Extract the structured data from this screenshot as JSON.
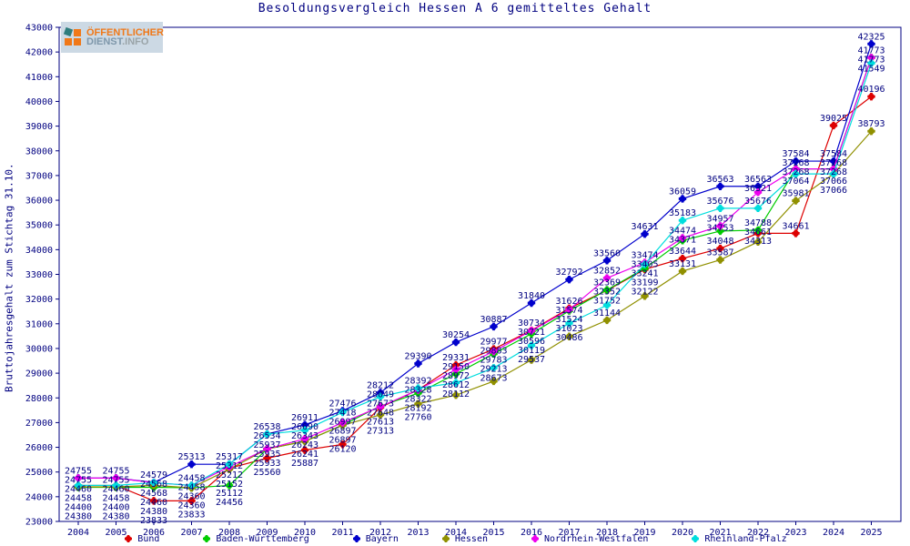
{
  "title": "Besoldungsvergleich Hessen A 6 gemitteltes Gehalt",
  "logo": {
    "line1": "ÖFFENTLICHER",
    "line2_a": "DIENST",
    "line2_b": ".INFO"
  },
  "colors": {
    "axis": "#000080",
    "text": "#000080",
    "background": "#ffffff",
    "logo_orange": "#f07818",
    "logo_gray_blue": "#7e97aa"
  },
  "chart_data": {
    "type": "line",
    "title": "Besoldungsvergleich Hessen A 6 gemitteltes Gehalt",
    "xlabel": "",
    "ylabel": "Bruttojahresgehalt zum Stichtag 31.10.",
    "x": [
      2004,
      2005,
      2006,
      2007,
      2008,
      2009,
      2010,
      2011,
      2012,
      2013,
      2014,
      2015,
      2016,
      2017,
      2018,
      2019,
      2020,
      2021,
      2022,
      2023,
      2024,
      2025
    ],
    "ylim": [
      23000,
      43000
    ],
    "ytick_step": 1000,
    "grid": false,
    "legend_position": "bottom",
    "point_labels": true,
    "series": [
      {
        "name": "Bund",
        "color": "#dd0000",
        "values": [
          24458,
          24458,
          23833,
          23833,
          25152,
          25560,
          25887,
          26120,
          27613,
          28328,
          29331,
          29977,
          30734,
          31626,
          32352,
          33199,
          33644,
          34048,
          34661,
          34661,
          39025,
          40196
        ]
      },
      {
        "name": "Baden-Württemberg",
        "color": "#00cc00",
        "values": [
          24380,
          24380,
          24380,
          24360,
          24456,
          25935,
          26241,
          26897,
          27673,
          28192,
          28972,
          29783,
          30596,
          31524,
          32369,
          33241,
          34371,
          34753,
          34788,
          37268,
          37268,
          41773
        ]
      },
      {
        "name": "Bayern",
        "color": "#0000cc",
        "values": [
          24755,
          24755,
          24579,
          25313,
          25317,
          26538,
          26911,
          27476,
          28212,
          29390,
          30254,
          30887,
          31840,
          32792,
          33560,
          34631,
          36059,
          36563,
          36563,
          37584,
          37584,
          42325
        ]
      },
      {
        "name": "Hessen",
        "color": "#909000",
        "values": [
          24400,
          24400,
          24460,
          24360,
          25112,
          25933,
          26243,
          26897,
          27313,
          27760,
          28112,
          28673,
          29537,
          30486,
          31144,
          32122,
          33131,
          33587,
          34313,
          35981,
          37066,
          38793
        ]
      },
      {
        "name": "Nordrhein-Westfalen",
        "color": "#ee00ee",
        "values": [
          24755,
          24755,
          24568,
          24458,
          25212,
          25937,
          26343,
          26997,
          27648,
          28322,
          29150,
          29883,
          30721,
          31574,
          32852,
          33474,
          34474,
          34957,
          36321,
          37268,
          37268,
          41773
        ]
      },
      {
        "name": "Rheinland-Pfalz",
        "color": "#00dddd",
        "values": [
          24460,
          24460,
          24568,
          24458,
          25312,
          26534,
          26690,
          27418,
          28049,
          28392,
          28612,
          29213,
          30119,
          31023,
          31752,
          33405,
          35183,
          35676,
          35676,
          37064,
          37066,
          41549
        ]
      }
    ]
  }
}
